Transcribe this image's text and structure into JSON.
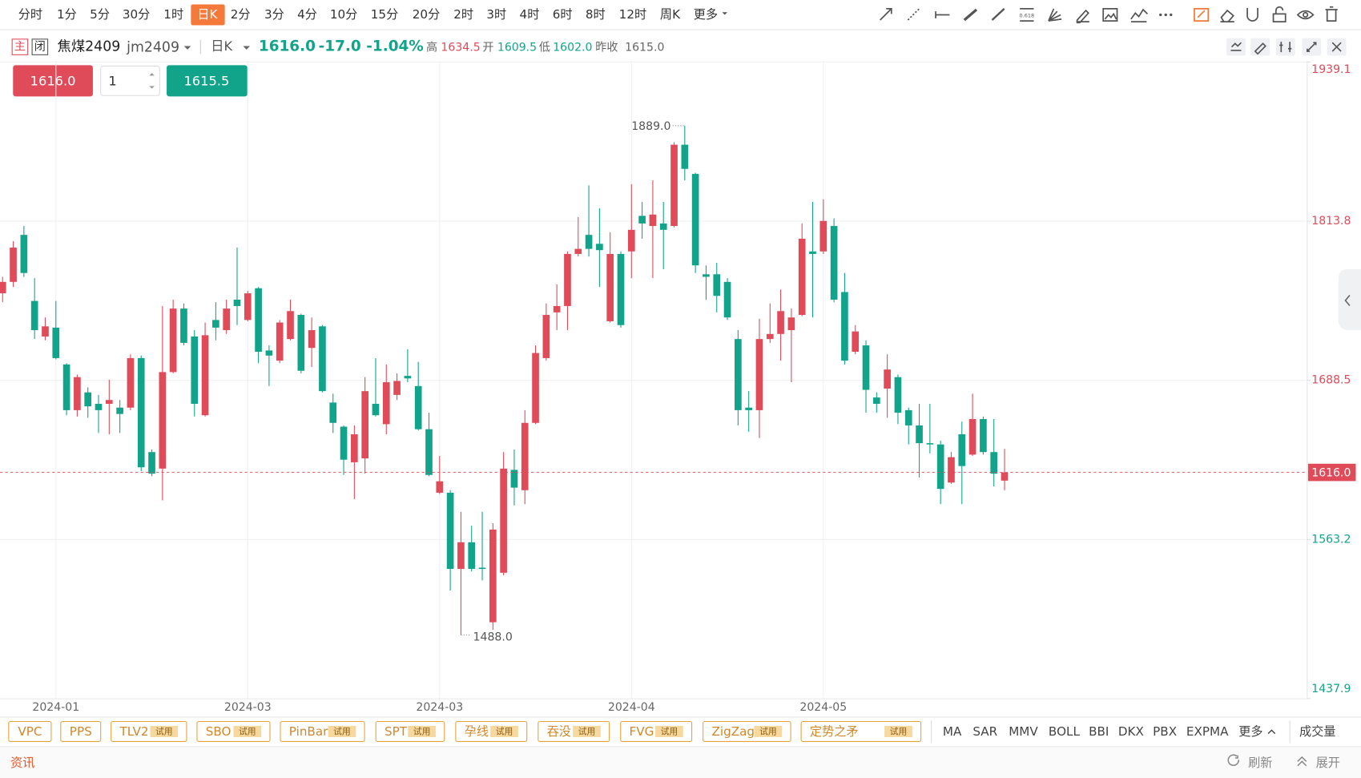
{
  "ui": {
    "periods": [
      "分时",
      "1分",
      "5分",
      "30分",
      "1时",
      "日K",
      "2分",
      "3分",
      "4分",
      "10分",
      "15分",
      "20分",
      "2时",
      "3时",
      "4时",
      "6时",
      "8时",
      "12时",
      "周K",
      "更多"
    ],
    "active_period": "日K",
    "fib_label": "0.618",
    "header": {
      "main": "主",
      "close_tag": "闭",
      "name": "焦煤2409",
      "code": "jm2409",
      "period": "日K",
      "price": "1616.0",
      "change": "-17.0",
      "change_pct": "-1.04%",
      "high_label": "高",
      "high": "1634.5",
      "open_label": "开",
      "open": "1609.5",
      "low_label": "低",
      "low": "1602.0",
      "prev_label": "昨收",
      "prev": "1615.0"
    },
    "order": {
      "sell": "1616.0",
      "qty": "1",
      "buy": "1615.5"
    },
    "indicators": [
      {
        "name": "VPC"
      },
      {
        "name": "PPS"
      },
      {
        "name": "TLV2",
        "badge": "试用"
      },
      {
        "name": "SBO",
        "badge": "试用"
      },
      {
        "name": "PinBar",
        "badge": "试用"
      },
      {
        "name": "SPT",
        "badge": "试用"
      },
      {
        "name": "孕线",
        "badge": "试用"
      },
      {
        "name": "吞没",
        "badge": "试用"
      },
      {
        "name": "FVG",
        "badge": "试用"
      },
      {
        "name": "ZigZag",
        "badge": "试用"
      },
      {
        "name": "定势之矛",
        "badge": "试用"
      }
    ],
    "main_indicators": [
      "MA",
      "SAR",
      "MMV",
      "BOLL",
      "BBI",
      "DKX",
      "PBX",
      "EXPMA",
      "更多"
    ],
    "volume": "成交量",
    "footer": {
      "news": "资讯",
      "refresh": "刷新",
      "expand": "展开"
    }
  },
  "chart_data": {
    "type": "candlestick",
    "categories": [
      null,
      null,
      null,
      null,
      null,
      "2024-01",
      null,
      null,
      null,
      null,
      null,
      null,
      null,
      null,
      null,
      null,
      null,
      null,
      null,
      null,
      null,
      null,
      null,
      "2024-03",
      null,
      null,
      null,
      null,
      null,
      null,
      null,
      null,
      null,
      null,
      null,
      null,
      null,
      null,
      null,
      null,
      null,
      "2024-03",
      null,
      null,
      null,
      null,
      null,
      null,
      null,
      null,
      null,
      null,
      null,
      null,
      null,
      null,
      null,
      null,
      null,
      "2024-04",
      null,
      null,
      null,
      null,
      null,
      null,
      null,
      null,
      null,
      null,
      null,
      null,
      null,
      null,
      null,
      null,
      null,
      "2024-05",
      null,
      null,
      null,
      null,
      null,
      null,
      null,
      null,
      null,
      null,
      null,
      null,
      null,
      null,
      null,
      null,
      null
    ],
    "open": [
      1757,
      1766,
      1803,
      1751,
      1723,
      1730,
      1701,
      1665,
      1679,
      1670,
      1670,
      1667,
      1667,
      1706,
      1632,
      1619,
      1695,
      1745,
      1723,
      1661,
      1736,
      1728,
      1752,
      1736,
      1761,
      1712,
      1704,
      1721,
      1740,
      1714,
      1731,
      1671,
      1652,
      1624,
      1627,
      1670,
      1654,
      1677,
      1692,
      1684,
      1650,
      1600,
      1600,
      1540,
      1561,
      1541,
      1498,
      1537,
      1618,
      1602,
      1655,
      1706,
      1742,
      1747,
      1788,
      1803,
      1796,
      1735,
      1788,
      1790,
      1818,
      1810,
      1812,
      1810,
      1874,
      1851,
      1772,
      1772,
      1766,
      1721,
      1667,
      1665,
      1721,
      1725,
      1728,
      1740,
      1790,
      1790,
      1810,
      1758,
      1711,
      1716,
      1675,
      1682,
      1691,
      1665,
      1653,
      1639,
      1638,
      1608,
      1646,
      1630,
      1658,
      1632,
      1609.5
    ],
    "high": [
      1770,
      1798,
      1810,
      1769,
      1738,
      1751,
      1702,
      1693,
      1683,
      1677,
      1689,
      1673,
      1709,
      1708,
      1634,
      1747,
      1752,
      1749,
      1728,
      1734,
      1750,
      1752,
      1793,
      1759,
      1762,
      1716,
      1736,
      1752,
      1741,
      1738,
      1732,
      1678,
      1653,
      1653,
      1691,
      1706,
      1701,
      1694,
      1713,
      1703,
      1663,
      1629,
      1602,
      1585,
      1574,
      1585,
      1576,
      1632,
      1634,
      1665,
      1716,
      1749,
      1764,
      1790,
      1817,
      1842,
      1824,
      1805,
      1790,
      1843,
      1829,
      1846,
      1829,
      1876,
      1889,
      1852,
      1779,
      1781,
      1769,
      1728,
      1680,
      1737,
      1749,
      1760,
      1745,
      1812,
      1829,
      1831,
      1816,
      1773,
      1732,
      1720,
      1679,
      1709,
      1693,
      1667,
      1670,
      1670,
      1641,
      1632,
      1656,
      1678,
      1660,
      1658,
      1634.5
    ],
    "low": [
      1750,
      1762,
      1770,
      1721,
      1720,
      1705,
      1661,
      1660,
      1659,
      1647,
      1646,
      1647,
      1665,
      1617,
      1613,
      1594,
      1694,
      1716,
      1660,
      1660,
      1720,
      1725,
      1732,
      1735,
      1702,
      1684,
      1702,
      1720,
      1694,
      1699,
      1679,
      1647,
      1614,
      1595,
      1615,
      1660,
      1646,
      1673,
      1687,
      1649,
      1613,
      1599,
      1523,
      1488,
      1538,
      1531,
      1492,
      1535,
      1590,
      1591,
      1654,
      1704,
      1728,
      1728,
      1786,
      1786,
      1762,
      1734,
      1730,
      1769,
      1800,
      1769,
      1776,
      1809,
      1846,
      1773,
      1752,
      1742,
      1736,
      1653,
      1648,
      1643,
      1718,
      1704,
      1687,
      1739,
      1738,
      1788,
      1750,
      1701,
      1709,
      1663,
      1663,
      1659,
      1654,
      1638,
      1612,
      1631,
      1591,
      1607,
      1591,
      1629,
      1630,
      1605,
      1602
    ],
    "close": [
      1766,
      1793,
      1773,
      1728,
      1731,
      1706,
      1665,
      1691,
      1668,
      1665,
      1673,
      1662,
      1706,
      1620,
      1615,
      1695,
      1745,
      1718,
      1670,
      1724,
      1730,
      1745,
      1747,
      1757,
      1711,
      1708,
      1734,
      1743,
      1696,
      1728,
      1680,
      1655,
      1626,
      1646,
      1680,
      1661,
      1687,
      1688,
      1690,
      1650,
      1614,
      1609,
      1540,
      1561,
      1540,
      1540,
      1571,
      1619,
      1604,
      1655,
      1710,
      1740,
      1747,
      1788,
      1792,
      1792,
      1791,
      1788,
      1732,
      1807,
      1812,
      1819,
      1807,
      1874,
      1855,
      1779,
      1770,
      1755,
      1738,
      1665,
      1665,
      1721,
      1725,
      1743,
      1738,
      1800,
      1788,
      1814,
      1752,
      1704,
      1727,
      1681,
      1670,
      1697,
      1663,
      1653,
      1639,
      1638,
      1603,
      1628,
      1621,
      1658,
      1632,
      1615,
      1616
    ],
    "up_color": "#e04b5a",
    "down_color": "#12a48b",
    "ylim": [
      1437.9,
      1939.1
    ],
    "yticks": [
      1437.9,
      1563.2,
      1688.5,
      1813.8,
      1939.1
    ],
    "grid": true,
    "last_price": {
      "value": 1616,
      "label": "1616.0"
    },
    "annotations": [
      {
        "value": 1889,
        "label": "1889.0"
      },
      {
        "value": 1488,
        "label": "1488.0"
      }
    ]
  }
}
